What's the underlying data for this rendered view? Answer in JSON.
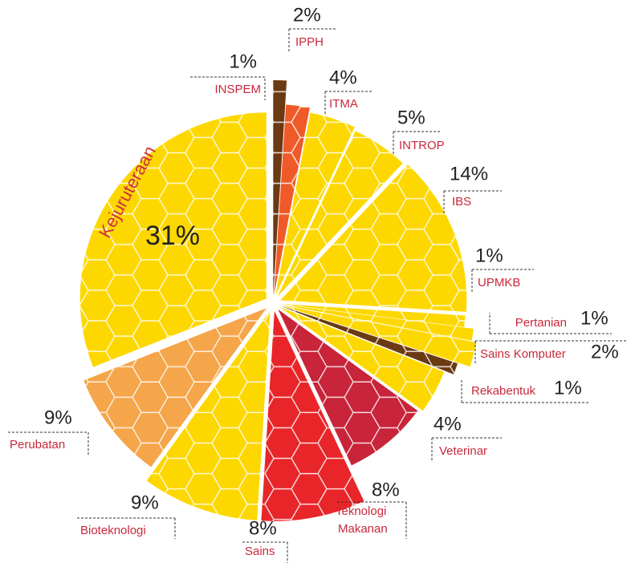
{
  "chart_data": {
    "type": "pie",
    "categories": [
      "INSPEM",
      "IPPH",
      "ITMA",
      "INTROP",
      "IBS",
      "UPMKB",
      "Pertanian",
      "Sains Komputer",
      "Rekabentuk",
      "Veterinar",
      "Teknologi Makanan",
      "Sains",
      "Bioteknologi",
      "Perubatan",
      "Kejuruteraan"
    ],
    "values": [
      1,
      2,
      4,
      5,
      14,
      1,
      1,
      2,
      1,
      4,
      8,
      8,
      9,
      9,
      31
    ],
    "value_labels": [
      "1%",
      "2%",
      "4%",
      "5%",
      "14%",
      "1%",
      "1%",
      "2%",
      "1%",
      "4%",
      "8%",
      "8%",
      "9%",
      "9%",
      "31%"
    ],
    "colors": [
      "#6b3a12",
      "#f05a28",
      "#fdd800",
      "#fdd800",
      "#fdd800",
      "#fdd800",
      "#fdd800",
      "#fdd800",
      "#6b3a12",
      "#fdd800",
      "#c8243a",
      "#e8262a",
      "#fdd800",
      "#f5a54a",
      "#fdd800"
    ]
  }
}
